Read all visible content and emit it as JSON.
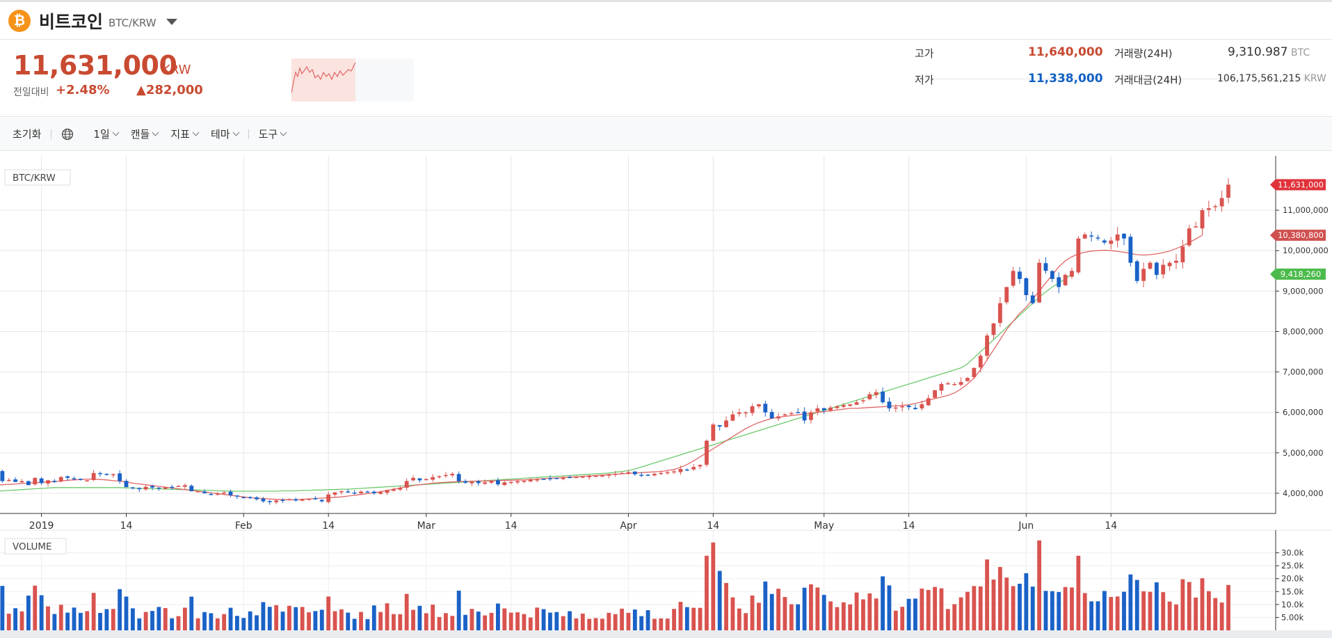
{
  "header": {
    "coin_icon": "bitcoin-icon",
    "coin_symbol": "₿",
    "name": "비트코인",
    "pair": "BTC/KRW"
  },
  "quote": {
    "price": "11,631,000",
    "unit": "KRW",
    "change_label": "전일대비",
    "change_pct": "+2.48%",
    "change_amt": "▲282,000",
    "high_label": "고가",
    "high_value": "11,640,000",
    "low_label": "저가",
    "low_value": "11,338,000",
    "volume_label": "거래량(24H)",
    "volume_value": "9,310.987",
    "volume_unit": "BTC",
    "turnover_label": "거래대금(24H)",
    "turnover_value": "106,175,561,215",
    "turnover_unit": "KRW"
  },
  "toolbar": {
    "reset": "초기화",
    "globe_icon": "globe-icon",
    "interval": "1일",
    "chart_type": "캔들",
    "indicator": "지표",
    "theme": "테마",
    "tools": "도구"
  },
  "colors": {
    "up": "#d9534f",
    "down": "#1a62c7",
    "ma_short": "#e06666",
    "ma_long": "#6cc96c",
    "price_red": "#c84a31",
    "price_blue": "#1261c4"
  },
  "chart_data": {
    "type": "candlestick",
    "price_panel_label": "BTC/KRW",
    "volume_panel_label": "VOLUME",
    "x_tick_labels": [
      "2019",
      "14",
      "Feb",
      "14",
      "Mar",
      "14",
      "Apr",
      "14",
      "May",
      "14",
      "Jun",
      "14"
    ],
    "x_tick_days": [
      1,
      14,
      32,
      45,
      60,
      73,
      91,
      104,
      121,
      134,
      152,
      165
    ],
    "date_range": [
      "2018-12-25",
      "2019-06-20"
    ],
    "ylim": [
      3500000,
      12000000
    ],
    "y_tick_labels": [
      "4,000,000",
      "5,000,000",
      "6,000,000",
      "7,000,000",
      "8,000,000",
      "9,000,000",
      "10,000,000",
      "11,000,000"
    ],
    "y_ticks": [
      4000000,
      5000000,
      6000000,
      7000000,
      8000000,
      9000000,
      10000000,
      11000000
    ],
    "last_price_label": "11,631,000",
    "last_price": 11631000,
    "ma_short_label": "10,380,800",
    "ma_short_last": 10380800,
    "ma_long_label": "9,418,260",
    "ma_long_last": 9418260,
    "close_series": [
      4560000,
      4300000,
      4330000,
      4280000,
      4300000,
      4200000,
      4380000,
      4250000,
      4320000,
      4280000,
      4400000,
      4380000,
      4350000,
      4330000,
      4320000,
      4500000,
      4480000,
      4460000,
      4470000,
      4300000,
      4150000,
      4120000,
      4100000,
      4160000,
      4140000,
      4120000,
      4150000,
      4150000,
      4180000,
      4200000,
      4050000,
      4050000,
      4000000,
      3980000,
      4000000,
      4020000,
      3950000,
      3920000,
      3900000,
      3880000,
      3850000,
      3800000,
      3780000,
      3820000,
      3830000,
      3850000,
      3820000,
      3840000,
      3860000,
      3850000,
      3800000,
      3970000,
      4020000,
      4050000,
      4020000,
      4010000,
      4040000,
      4030000,
      4000000,
      4030000,
      4080000,
      4100000,
      4130000,
      4300000,
      4380000,
      4320000,
      4350000,
      4400000,
      4420000,
      4450000,
      4480000,
      4300000,
      4260000,
      4280000,
      4250000,
      4270000,
      4300000,
      4220000,
      4270000,
      4280000,
      4300000,
      4310000,
      4330000,
      4340000,
      4350000,
      4360000,
      4370000,
      4380000,
      4390000,
      4400000,
      4410000,
      4420000,
      4430000,
      4440000,
      4460000,
      4480000,
      4500000,
      4520000,
      4470000,
      4450000,
      4460000,
      4480000,
      4500000,
      4520000,
      4540000,
      4600000,
      4580000,
      4650000,
      4700000,
      5300000,
      5700000,
      5650000,
      5800000,
      5950000,
      6000000,
      6000000,
      6150000,
      6200000,
      6000000,
      5850000,
      5900000,
      5950000,
      5980000,
      6000000,
      5800000,
      6000000,
      6100000,
      6050000,
      6120000,
      6150000,
      6180000,
      6200000,
      6250000,
      6300000,
      6450000,
      6500000,
      6250000,
      6100000,
      6120000,
      6150000,
      6130000,
      6080000,
      6200000,
      6350000,
      6550000,
      6700000,
      6720000,
      6700000,
      6750000,
      6850000,
      7100000,
      7400000,
      7900000,
      8200000,
      8700000,
      9100000,
      9500000,
      9300000,
      8900000,
      8700000,
      9700000,
      9500000,
      9300000,
      9100000,
      9400000,
      9500000,
      10300000,
      10400000,
      10350000,
      10300000,
      10200000,
      10250000,
      10400000,
      10300000,
      9700000,
      9250000,
      9550000,
      9700000,
      9400000,
      9650000,
      9700000,
      9750000,
      10100000,
      10550000,
      10600000,
      11000000,
      11050000,
      11100000,
      11300000,
      11631000
    ],
    "ma_short": [
      4200000,
      4210000,
      4220000,
      4230000,
      4240000,
      4250000,
      4260000,
      4270000,
      4280000,
      4290000,
      4300000,
      4320000,
      4330000,
      4340000,
      4350000,
      4350000,
      4340000,
      4330000,
      4310000,
      4300000,
      4280000,
      4250000,
      4230000,
      4210000,
      4190000,
      4170000,
      4150000,
      4130000,
      4110000,
      4090000,
      4070000,
      4050000,
      4030000,
      4010000,
      3990000,
      3970000,
      3950000,
      3930000,
      3910000,
      3890000,
      3880000,
      3870000,
      3860000,
      3850000,
      3840000,
      3840000,
      3840000,
      3850000,
      3860000,
      3870000,
      3880000,
      3890000,
      3900000,
      3910000,
      3930000,
      3950000,
      3970000,
      3990000,
      4010000,
      4040000,
      4070000,
      4100000,
      4130000,
      4160000,
      4190000,
      4210000,
      4230000,
      4250000,
      4260000,
      4270000,
      4280000,
      4290000,
      4290000,
      4300000,
      4300000,
      4300000,
      4310000,
      4310000,
      4320000,
      4320000,
      4330000,
      4330000,
      4340000,
      4350000,
      4360000,
      4370000,
      4380000,
      4390000,
      4400000,
      4410000,
      4420000,
      4430000,
      4440000,
      4450000,
      4460000,
      4470000,
      4480000,
      4490000,
      4500000,
      4510000,
      4520000,
      4530000,
      4540000,
      4560000,
      4590000,
      4640000,
      4710000,
      4800000,
      4900000,
      5000000,
      5100000,
      5200000,
      5300000,
      5400000,
      5500000,
      5600000,
      5680000,
      5750000,
      5800000,
      5850000,
      5880000,
      5900000,
      5920000,
      5940000,
      5960000,
      5980000,
      6000000,
      6020000,
      6040000,
      6060000,
      6080000,
      6100000,
      6100000,
      6110000,
      6120000,
      6130000,
      6140000,
      6150000,
      6160000,
      6170000,
      6190000,
      6220000,
      6260000,
      6300000,
      6340000,
      6380000,
      6420000,
      6480000,
      6580000,
      6700000,
      6850000,
      7050000,
      7300000,
      7550000,
      7800000,
      8050000,
      8250000,
      8450000,
      8600000,
      8800000,
      9000000,
      9200000,
      9400000,
      9600000,
      9750000,
      9850000,
      9920000,
      9960000,
      9990000,
      10000000,
      10010000,
      10000000,
      9980000,
      9960000,
      9930000,
      9900000,
      9890000,
      9900000,
      9920000,
      9950000,
      9990000,
      10050000,
      10120000,
      10200000,
      10290000,
      10380800
    ],
    "ma_long": [
      4050000,
      4060000,
      4070000,
      4080000,
      4090000,
      4100000,
      4110000,
      4120000,
      4130000,
      4140000,
      4140000,
      4140000,
      4140000,
      4140000,
      4140000,
      4140000,
      4140000,
      4140000,
      4140000,
      4140000,
      4130000,
      4130000,
      4120000,
      4120000,
      4110000,
      4110000,
      4100000,
      4100000,
      4090000,
      4090000,
      4080000,
      4080000,
      4070000,
      4070000,
      4060000,
      4060000,
      4050000,
      4050000,
      4050000,
      4050000,
      4050000,
      4050000,
      4050000,
      4050000,
      4060000,
      4060000,
      4060000,
      4070000,
      4070000,
      4080000,
      4080000,
      4090000,
      4090000,
      4100000,
      4100000,
      4110000,
      4120000,
      4130000,
      4140000,
      4150000,
      4160000,
      4170000,
      4180000,
      4190000,
      4200000,
      4210000,
      4220000,
      4230000,
      4240000,
      4250000,
      4260000,
      4270000,
      4280000,
      4290000,
      4300000,
      4310000,
      4320000,
      4330000,
      4340000,
      4350000,
      4360000,
      4370000,
      4380000,
      4390000,
      4400000,
      4410000,
      4420000,
      4430000,
      4440000,
      4450000,
      4460000,
      4470000,
      4480000,
      4490000,
      4500000,
      4520000,
      4540000,
      4560000,
      4600000,
      4650000,
      4700000,
      4750000,
      4800000,
      4850000,
      4900000,
      4950000,
      5000000,
      5050000,
      5100000,
      5150000,
      5200000,
      5250000,
      5300000,
      5350000,
      5400000,
      5450000,
      5500000,
      5550000,
      5600000,
      5650000,
      5700000,
      5750000,
      5800000,
      5850000,
      5900000,
      5950000,
      6000000,
      6050000,
      6100000,
      6150000,
      6200000,
      6250000,
      6300000,
      6350000,
      6400000,
      6450000,
      6500000,
      6550000,
      6600000,
      6650000,
      6700000,
      6750000,
      6800000,
      6850000,
      6900000,
      6950000,
      7000000,
      7050000,
      7100000,
      7200000,
      7350000,
      7500000,
      7650000,
      7800000,
      7950000,
      8100000,
      8250000,
      8400000,
      8550000,
      8700000,
      8850000,
      8980000,
      9100000,
      9200000,
      9300000,
      9418260
    ],
    "volume_ylim": [
      0,
      35000
    ],
    "volume_tick_labels": [
      "5.00k",
      "10.0k",
      "15.0k",
      "20.0k",
      "25.0k",
      "30.0k"
    ],
    "volume_ticks": [
      5000,
      10000,
      15000,
      20000,
      25000,
      30000
    ]
  }
}
